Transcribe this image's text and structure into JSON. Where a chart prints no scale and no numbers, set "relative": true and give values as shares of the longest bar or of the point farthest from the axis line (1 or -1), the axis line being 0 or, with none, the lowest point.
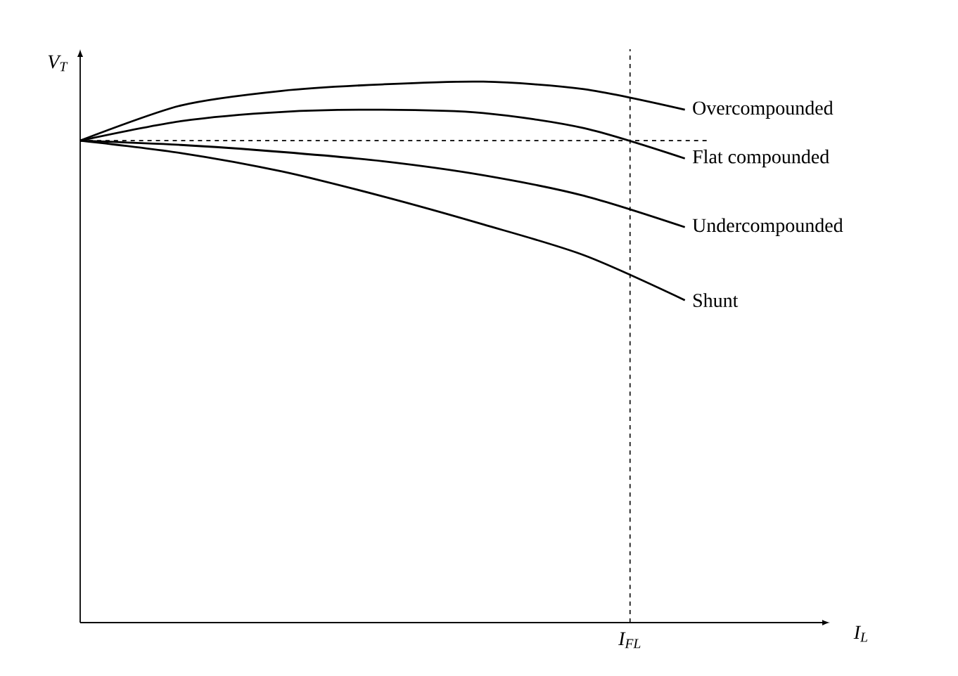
{
  "chart_data": {
    "type": "line",
    "relative": true,
    "xlabel": "I$_{L}$",
    "ylabel": "V$_{T}$",
    "categories": [
      null,
      null,
      null,
      null,
      null,
      null,
      null
    ],
    "annotations": [
      "I$_{FL}$"
    ],
    "series": [
      {
        "name": "Overcompounded",
        "color": "#000000",
        "values": [
          0.891,
          0.956,
          0.983,
          0.995,
          1.0,
          0.986,
          0.948
        ]
      },
      {
        "name": "Flat compounded",
        "color": "#000000",
        "values": [
          0.891,
          0.927,
          0.944,
          0.948,
          0.942,
          0.914,
          0.858
        ]
      },
      {
        "name": "Undercompounded",
        "color": "#000000",
        "values": [
          0.891,
          0.883,
          0.87,
          0.853,
          0.827,
          0.789,
          0.731
        ]
      },
      {
        "name": "Shunt",
        "color": "#000000",
        "values": [
          0.891,
          0.868,
          0.834,
          0.788,
          0.736,
          0.679,
          0.596
        ]
      }
    ],
    "ref_lines": [
      {
        "axis": "y",
        "value": 0.891,
        "color": "#000000",
        "line_style": "dashed"
      }
    ],
    "legend": false,
    "marker": "none",
    "line_style": "solid"
  }
}
